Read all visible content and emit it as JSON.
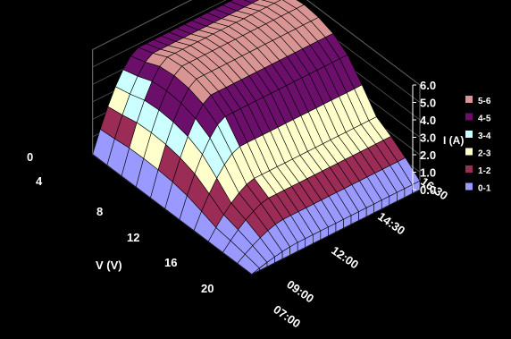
{
  "chart_data": {
    "type": "surface",
    "title": "",
    "background": "#000000",
    "xlabel": "V (V)",
    "ylabel": "",
    "zlabel": "I (A)",
    "v_ticks": [
      "0",
      "4",
      "8",
      "12",
      "16",
      "20"
    ],
    "time_ticks": [
      "07:00",
      "09:00",
      "12:00",
      "14:30",
      "16:30"
    ],
    "z_ticks": [
      "0.0",
      "1.0",
      "2.0",
      "3.0",
      "4.0",
      "5.0",
      "6.0"
    ],
    "zlim": [
      0,
      6
    ],
    "vlim": [
      0,
      22
    ],
    "v_knee": 16,
    "time_profile": [
      {
        "t": "07:00",
        "Isc": 0.5
      },
      {
        "t": "08:00",
        "Isc": 1.2
      },
      {
        "t": "09:00",
        "Isc": 1.8
      },
      {
        "t": "10:00",
        "Isc": 2.3
      },
      {
        "t": "11:00",
        "Isc": 3.5
      },
      {
        "t": "12:00",
        "Isc": 4.6
      },
      {
        "t": "13:00",
        "Isc": 5.2
      },
      {
        "t": "14:00",
        "Isc": 5.5
      },
      {
        "t": "14:30",
        "Isc": 5.6
      },
      {
        "t": "15:00",
        "Isc": 5.5
      },
      {
        "t": "16:00",
        "Isc": 5.1
      },
      {
        "t": "16:30",
        "Isc": 4.8
      }
    ],
    "legend": {
      "position": "right",
      "entries": [
        {
          "label": "5-6",
          "color": "#d99594"
        },
        {
          "label": "4-5",
          "color": "#6b0f6b"
        },
        {
          "label": "3-4",
          "color": "#ccffff"
        },
        {
          "label": "2-3",
          "color": "#ffffcc"
        },
        {
          "label": "1-2",
          "color": "#9a2c55"
        },
        {
          "label": "0-1",
          "color": "#9999ff"
        }
      ]
    }
  }
}
